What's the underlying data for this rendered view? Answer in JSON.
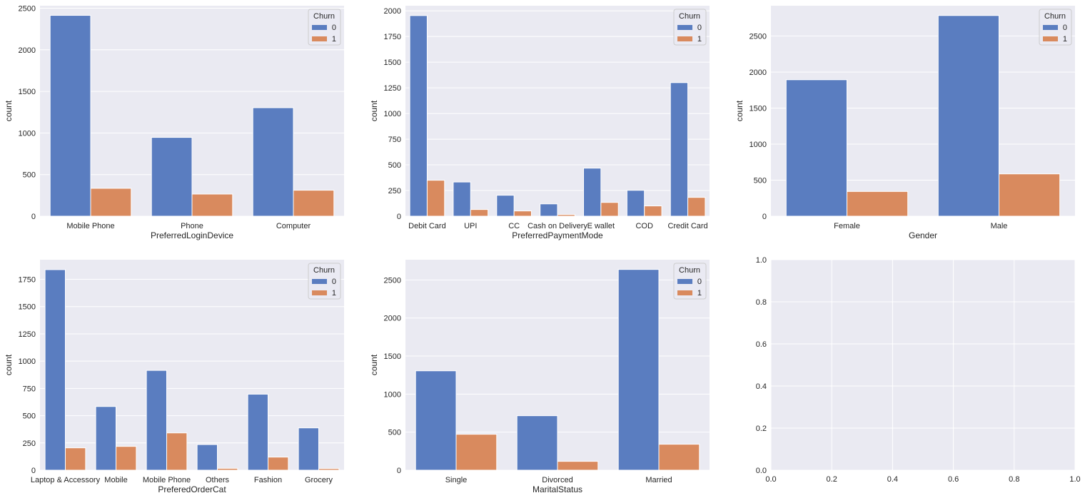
{
  "colors": {
    "churn_0": "#5a7dc0",
    "churn_1": "#d98a5e",
    "axes_bg": "#eaeaf2",
    "grid": "#ffffff"
  },
  "chart_data": [
    {
      "type": "bar",
      "xlabel": "PreferredLoginDevice",
      "ylabel": "count",
      "categories": [
        "Mobile Phone",
        "Phone",
        "Computer"
      ],
      "series": [
        {
          "name": "0",
          "values": [
            2414,
            947,
            1304
          ]
        },
        {
          "name": "1",
          "values": [
            335,
            266,
            312
          ]
        }
      ],
      "legend": {
        "title": "Churn",
        "placement": "top-right"
      },
      "ylim": [
        0,
        2530
      ],
      "yticks": [
        0,
        500,
        1000,
        1500,
        2000,
        2500
      ],
      "grid": true
    },
    {
      "type": "bar",
      "xlabel": "PreferredPaymentMode",
      "ylabel": "count",
      "categories": [
        "Debit Card",
        "UPI",
        "CC",
        "Cash on Delivery",
        "E wallet",
        "COD",
        "Credit Card"
      ],
      "series": [
        {
          "name": "0",
          "values": [
            1954,
            333,
            204,
            120,
            468,
            252,
            1301
          ]
        },
        {
          "name": "1",
          "values": [
            350,
            65,
            51,
            16,
            134,
            100,
            183
          ]
        }
      ],
      "legend": {
        "title": "Churn",
        "placement": "top-right"
      },
      "ylim": [
        0,
        2050
      ],
      "yticks": [
        0,
        250,
        500,
        750,
        1000,
        1250,
        1500,
        1750,
        2000
      ],
      "grid": true
    },
    {
      "type": "bar",
      "xlabel": "Gender",
      "ylabel": "count",
      "categories": [
        "Female",
        "Male"
      ],
      "series": [
        {
          "name": "0",
          "values": [
            1893,
            2784
          ]
        },
        {
          "name": "1",
          "values": [
            343,
            587
          ]
        }
      ],
      "legend": {
        "title": "Churn",
        "placement": "top-right"
      },
      "ylim": [
        0,
        2920
      ],
      "yticks": [
        0,
        500,
        1000,
        1500,
        2000,
        2500
      ],
      "grid": true
    },
    {
      "type": "bar",
      "xlabel": "PreferedOrderCat",
      "ylabel": "count",
      "categories": [
        "Laptop & Accessory",
        "Mobile",
        "Mobile Phone",
        "Others",
        "Fashion",
        "Grocery"
      ],
      "series": [
        {
          "name": "0",
          "values": [
            1839,
            584,
            915,
            235,
            697,
            388
          ]
        },
        {
          "name": "1",
          "values": [
            205,
            218,
            342,
            17,
            120,
            15
          ]
        }
      ],
      "legend": {
        "title": "Churn",
        "placement": "top-right"
      },
      "ylim": [
        0,
        1930
      ],
      "yticks": [
        0,
        250,
        500,
        750,
        1000,
        1250,
        1500,
        1750
      ],
      "grid": true
    },
    {
      "type": "bar",
      "xlabel": "MaritalStatus",
      "ylabel": "count",
      "categories": [
        "Single",
        "Divorced",
        "Married"
      ],
      "series": [
        {
          "name": "0",
          "values": [
            1306,
            716,
            2638
          ]
        },
        {
          "name": "1",
          "values": [
            472,
            116,
            341
          ]
        }
      ],
      "legend": {
        "title": "Churn",
        "placement": "top-right"
      },
      "ylim": [
        0,
        2766
      ],
      "yticks": [
        0,
        500,
        1000,
        1500,
        2000,
        2500
      ],
      "grid": true
    },
    {
      "type": "empty",
      "xlabel": "",
      "ylabel": "",
      "xlim": [
        0,
        1
      ],
      "ylim": [
        0,
        1
      ],
      "xticks": [
        "0.0",
        "0.2",
        "0.4",
        "0.6",
        "0.8",
        "1.0"
      ],
      "yticks": [
        "0.0",
        "0.2",
        "0.4",
        "0.6",
        "0.8",
        "1.0"
      ],
      "grid": true
    }
  ]
}
